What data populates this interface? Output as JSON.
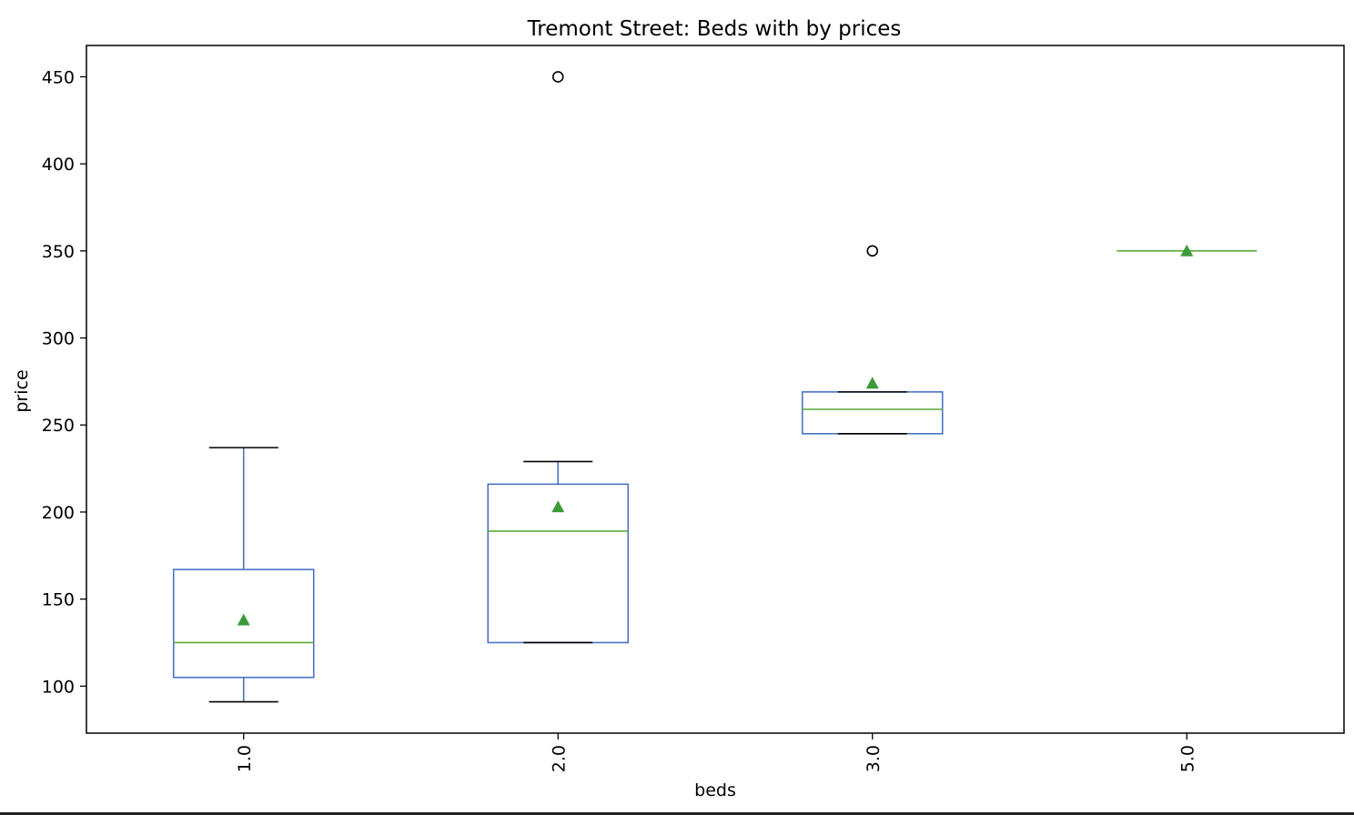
{
  "chart_data": {
    "type": "box",
    "title": "Tremont Street: Beds with by prices",
    "xlabel": "beds",
    "ylabel": "price",
    "categories": [
      "1.0",
      "2.0",
      "3.0",
      "5.0"
    ],
    "ylim": [
      73,
      468
    ],
    "yticks": [
      100,
      150,
      200,
      250,
      300,
      350,
      400,
      450
    ],
    "grid": false,
    "boxes": [
      {
        "category": "1.0",
        "whisker_low": 91,
        "q1": 105,
        "median": 125,
        "q3": 167,
        "whisker_high": 237,
        "mean": 138,
        "outliers": []
      },
      {
        "category": "2.0",
        "whisker_low": 125,
        "q1": 125,
        "median": 189,
        "q3": 216,
        "whisker_high": 229,
        "mean": 203,
        "outliers": [
          450
        ]
      },
      {
        "category": "3.0",
        "whisker_low": 245,
        "q1": 245,
        "median": 259,
        "q3": 269,
        "whisker_high": 269,
        "mean": 274,
        "outliers": [
          350
        ]
      },
      {
        "category": "5.0",
        "whisker_low": 350,
        "q1": 350,
        "median": 350,
        "q3": 350,
        "whisker_high": 350,
        "mean": 350,
        "outliers": []
      }
    ],
    "colors": {
      "box": "#4a72c4",
      "whisker_cap": "#000000",
      "median": "#5aab3a",
      "mean_marker": "#3d9a3a",
      "outlier": "#000000",
      "axes": "#000000"
    }
  }
}
